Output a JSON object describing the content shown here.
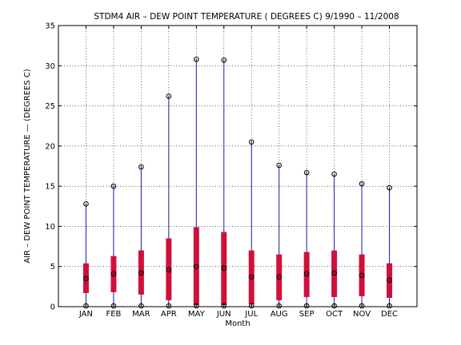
{
  "chart_data": {
    "type": "box",
    "title": "STDM4  AIR – DEW POINT TEMPERATURE ( DEGREES C) 9/1990 – 11/2008",
    "xlabel": "Month",
    "ylabel": "AIR – DEW POINT TEMPERATURE  —  (DEGREES C)",
    "categories": [
      "JAN",
      "FEB",
      "MAR",
      "APR",
      "MAY",
      "JUN",
      "JUL",
      "AUG",
      "SEP",
      "OCT",
      "NOV",
      "DEC"
    ],
    "ylim": [
      0,
      35
    ],
    "yticks": [
      0,
      5,
      10,
      15,
      20,
      25,
      30,
      35
    ],
    "grid": true,
    "series": [
      {
        "min": [
          0.1,
          0.1,
          0.1,
          0.1,
          0.1,
          0.1,
          0.1,
          0.1,
          0.1,
          0.1,
          0.1,
          0.1
        ],
        "q1": [
          1.7,
          1.8,
          1.5,
          0.8,
          0.2,
          0.2,
          0.3,
          0.8,
          1.2,
          1.2,
          1.3,
          1.1
        ],
        "median": [
          3.5,
          4.1,
          4.2,
          4.6,
          5.0,
          4.8,
          3.7,
          3.7,
          4.1,
          4.2,
          3.9,
          3.3
        ],
        "q3": [
          5.4,
          6.3,
          7.0,
          8.5,
          9.9,
          9.3,
          7.0,
          6.5,
          6.8,
          7.0,
          6.5,
          5.4
        ],
        "max": [
          12.8,
          15.0,
          17.4,
          26.2,
          30.8,
          30.7,
          20.5,
          17.6,
          16.7,
          16.5,
          15.3,
          14.8
        ]
      }
    ],
    "colors": {
      "whisker": "#1a1aa8",
      "box": "#d0103a",
      "marker": "#000000",
      "grid": "#000000"
    }
  }
}
